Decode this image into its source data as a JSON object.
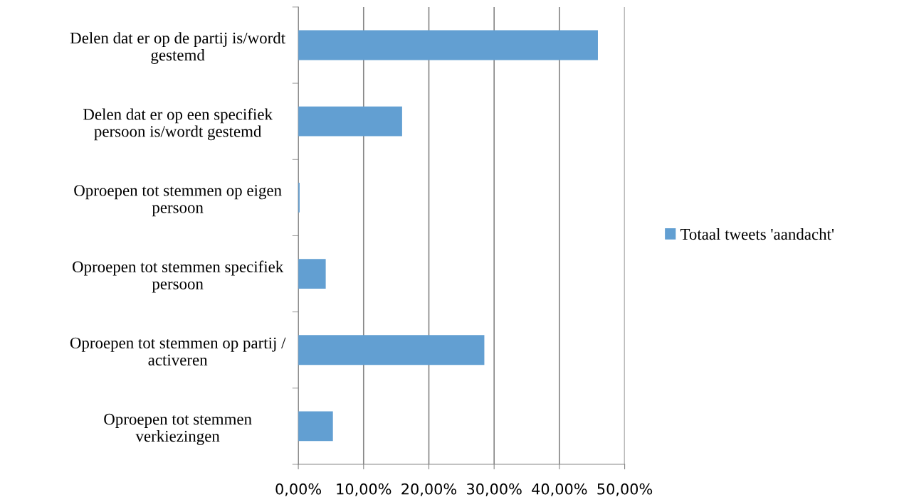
{
  "chart_data": {
    "type": "bar",
    "orientation": "horizontal",
    "categories": [
      "Delen dat er op de partij is/wordt\ngestemd",
      "Delen dat er op een specifiek\npersoon is/wordt gestemd",
      "Oproepen tot stemmen op eigen\npersoon",
      "Oproepen tot stemmen specifiek\npersoon",
      "Oproepen tot stemmen op partij /\nactiveren",
      "Oproepen tot stemmen\nverkiezingen"
    ],
    "series": [
      {
        "name": "Totaal tweets 'aandacht'",
        "color": "#629fd2",
        "values": [
          45.9,
          15.9,
          0.2,
          4.2,
          28.5,
          5.3
        ]
      }
    ],
    "xlim": [
      0,
      50
    ],
    "xticks": [
      {
        "value": 0,
        "label": "0,00%"
      },
      {
        "value": 10,
        "label": "10,00%"
      },
      {
        "value": 20,
        "label": "20,00%"
      },
      {
        "value": 30,
        "label": "30,00%"
      },
      {
        "value": 40,
        "label": "40,00%"
      },
      {
        "value": 50,
        "label": "50,00%"
      }
    ],
    "grid": "x",
    "legend": "right"
  }
}
